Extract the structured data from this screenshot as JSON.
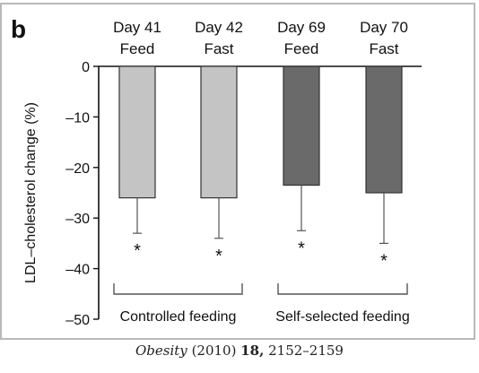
{
  "figure": {
    "panel_label": "b",
    "citation": {
      "journal": "Obesity",
      "year": "(2010)",
      "volume": "18,",
      "pages": "2152–2159"
    },
    "colors": {
      "frame": "#b9b9b9",
      "light_bar": "#c4c4c4",
      "dark_bar": "#6a6a6a",
      "axis": "#111111"
    }
  },
  "chart_data": {
    "type": "bar",
    "categories": [
      [
        "Day 41",
        "Feed"
      ],
      [
        "Day 42",
        "Fast"
      ],
      [
        "Day 69",
        "Feed"
      ],
      [
        "Day 70",
        "Fast"
      ]
    ],
    "values": [
      -26,
      -26,
      -23.5,
      -25
    ],
    "error_bars": [
      7,
      8,
      9,
      10
    ],
    "bar_colors": [
      "#c4c4c4",
      "#c4c4c4",
      "#6a6a6a",
      "#6a6a6a"
    ],
    "significance_marks": [
      "*",
      "*",
      "*",
      "*"
    ],
    "ylabel": "LDL–cholesterol change (%)",
    "xlabel": "",
    "ylim": [
      -50,
      0
    ],
    "yticks": [
      "0",
      "–10",
      "–20",
      "–30",
      "–40",
      "–50"
    ],
    "ytick_values": [
      0,
      -10,
      -20,
      -30,
      -40,
      -50
    ],
    "groups": [
      {
        "label": "Controlled feeding",
        "members": [
          0,
          1
        ]
      },
      {
        "label": "Self-selected feeding",
        "members": [
          2,
          3
        ]
      }
    ],
    "grid": false,
    "legend": "none"
  }
}
